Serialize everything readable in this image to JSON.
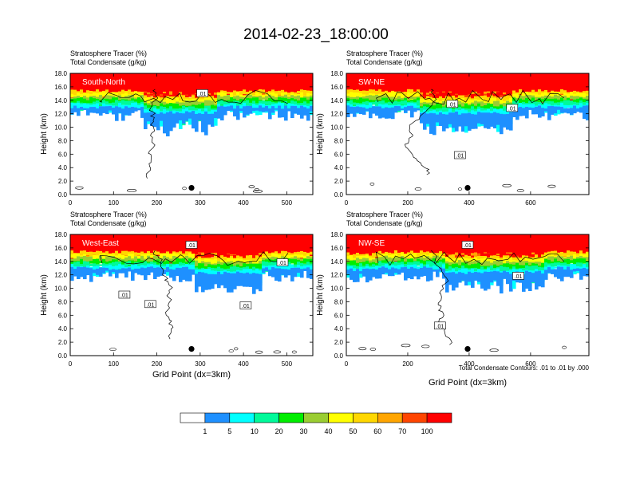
{
  "title": "2014-02-23_18:00:00",
  "colors": {
    "levels": [
      "#ffffff",
      "#1e90ff",
      "#00ffff",
      "#00fa9a",
      "#00ee00",
      "#9acd32",
      "#ffff00",
      "#ffd700",
      "#ffa500",
      "#ff4500",
      "#ff0000"
    ],
    "contour": "#000000",
    "frame": "#000000"
  },
  "footnote": "Total Condensate Contours: .01 to .01 by .000",
  "colorbar": {
    "labels": [
      "1",
      "5",
      "10",
      "20",
      "30",
      "40",
      "50",
      "60",
      "70",
      "100"
    ]
  },
  "chart_data": [
    {
      "type": "heatmap",
      "id": "south-north",
      "label": "South-North",
      "left_title_line1": "Stratosphere Tracer   (%)",
      "left_title_line2": "Total Condensate   (g/kg)",
      "ylabel": "Height (km)",
      "xlabel": "",
      "xlim": [
        0,
        560
      ],
      "ylim": [
        0,
        18
      ],
      "xticks": [
        "0",
        "100",
        "200",
        "300",
        "400",
        "500"
      ],
      "xtick_values": [
        0,
        100,
        200,
        300,
        400,
        500
      ],
      "yticks": [
        "0.0",
        "2.0",
        "4.0",
        "6.0",
        "8.0",
        "10.0",
        "12.0",
        "14.0",
        "16.0",
        "18.0"
      ],
      "marker": {
        "x": 280,
        "y": 1.0
      },
      "contour_labels": [
        {
          "text": ".01",
          "x": 305,
          "y": 15.0
        }
      ]
    },
    {
      "type": "heatmap",
      "id": "sw-ne",
      "label": "SW-NE",
      "left_title_line1": "Stratosphere Tracer   (%)",
      "left_title_line2": "Total Condensate   (g/kg)",
      "ylabel": "Height (km)",
      "xlabel": "",
      "xlim": [
        0,
        790
      ],
      "ylim": [
        0,
        18
      ],
      "xticks": [
        "0",
        "200",
        "400",
        "600"
      ],
      "xtick_values": [
        0,
        200,
        400,
        600
      ],
      "yticks": [
        "0.0",
        "2.0",
        "4.0",
        "6.0",
        "8.0",
        "10.0",
        "12.0",
        "14.0",
        "16.0",
        "18.0"
      ],
      "marker": {
        "x": 395,
        "y": 1.0
      },
      "contour_labels": [
        {
          "text": ".01",
          "x": 345,
          "y": 13.4
        },
        {
          "text": ".01",
          "x": 540,
          "y": 12.8
        },
        {
          "text": ".01",
          "x": 370,
          "y": 5.8
        }
      ]
    },
    {
      "type": "heatmap",
      "id": "west-east",
      "label": "West-East",
      "left_title_line1": "Stratosphere Tracer   (%)",
      "left_title_line2": "Total Condensate   (g/kg)",
      "ylabel": "Height (km)",
      "xlabel": "Grid Point (dx=3km)",
      "xlim": [
        0,
        560
      ],
      "ylim": [
        0,
        18
      ],
      "xticks": [
        "0",
        "100",
        "200",
        "300",
        "400",
        "500"
      ],
      "xtick_values": [
        0,
        100,
        200,
        300,
        400,
        500
      ],
      "yticks": [
        "0.0",
        "2.0",
        "4.0",
        "6.0",
        "8.0",
        "10.0",
        "12.0",
        "14.0",
        "16.0",
        "18.0"
      ],
      "marker": {
        "x": 280,
        "y": 1.0
      },
      "contour_labels": [
        {
          "text": ".01",
          "x": 280,
          "y": 16.4
        },
        {
          "text": ".01",
          "x": 490,
          "y": 13.8
        },
        {
          "text": ".01",
          "x": 125,
          "y": 9.0
        },
        {
          "text": ".01",
          "x": 185,
          "y": 7.6
        },
        {
          "text": ".01",
          "x": 405,
          "y": 7.4
        }
      ]
    },
    {
      "type": "heatmap",
      "id": "nw-se",
      "label": "NW-SE",
      "left_title_line1": "Stratosphere Tracer   (%)",
      "left_title_line2": "Total Condensate   (g/kg)",
      "ylabel": "Height (km)",
      "xlabel": "Grid Point (dx=3km)",
      "xlim": [
        0,
        790
      ],
      "ylim": [
        0,
        18
      ],
      "xticks": [
        "0",
        "200",
        "400",
        "600"
      ],
      "xtick_values": [
        0,
        200,
        400,
        600
      ],
      "yticks": [
        "0.0",
        "2.0",
        "4.0",
        "6.0",
        "8.0",
        "10.0",
        "12.0",
        "14.0",
        "16.0",
        "18.0"
      ],
      "marker": {
        "x": 395,
        "y": 1.0
      },
      "contour_labels": [
        {
          "text": ".01",
          "x": 395,
          "y": 16.4
        },
        {
          "text": ".01",
          "x": 560,
          "y": 11.8
        },
        {
          "text": ".01",
          "x": 305,
          "y": 4.4
        }
      ]
    }
  ]
}
